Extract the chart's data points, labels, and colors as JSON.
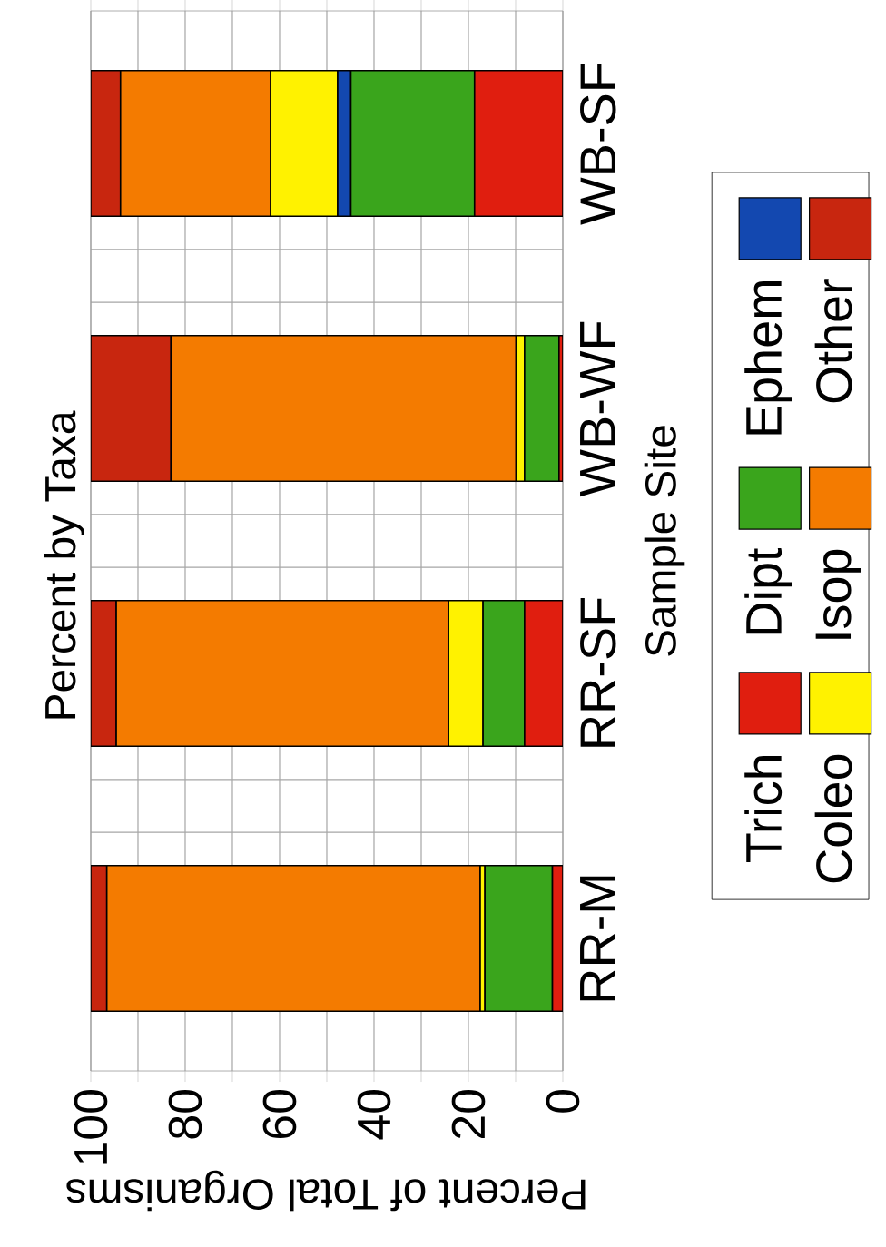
{
  "chart_data": {
    "type": "bar",
    "orientation": "horizontal",
    "stacked": true,
    "title": "Percent by Taxa",
    "xlabel": "Percent of Total Organisms",
    "ylabel": "Sample Site",
    "categories": [
      "WB-SF",
      "WB-WF",
      "RR-SF",
      "RR-M"
    ],
    "series": [
      {
        "name": "Trich",
        "color": "#e01e0f",
        "values": [
          18.7,
          0.8,
          8.1,
          2.2
        ]
      },
      {
        "name": "Dipt",
        "color": "#3aa51c",
        "values": [
          26.2,
          7.3,
          8.8,
          14.3
        ]
      },
      {
        "name": "Ephem",
        "color": "#1348b0",
        "values": [
          2.8,
          0,
          0,
          0
        ]
      },
      {
        "name": "Coleo",
        "color": "#fff200",
        "values": [
          14.2,
          1.8,
          7.3,
          1.0
        ]
      },
      {
        "name": "Isop",
        "color": "#f47b00",
        "values": [
          31.8,
          73.1,
          70.4,
          79.1
        ]
      },
      {
        "name": "Other",
        "color": "#c8260f",
        "values": [
          6.3,
          17.0,
          5.4,
          3.4
        ]
      }
    ],
    "xlim": [
      100,
      0
    ],
    "xticks": [
      100,
      {
        "value": 90,
        "label": null
      },
      80,
      {
        "value": 70,
        "label": null
      },
      60,
      {
        "value": 50,
        "label": null
      },
      40,
      {
        "value": 30,
        "label": null
      },
      20,
      {
        "value": 10,
        "label": null
      },
      0
    ],
    "grid": true,
    "legend": "right"
  }
}
